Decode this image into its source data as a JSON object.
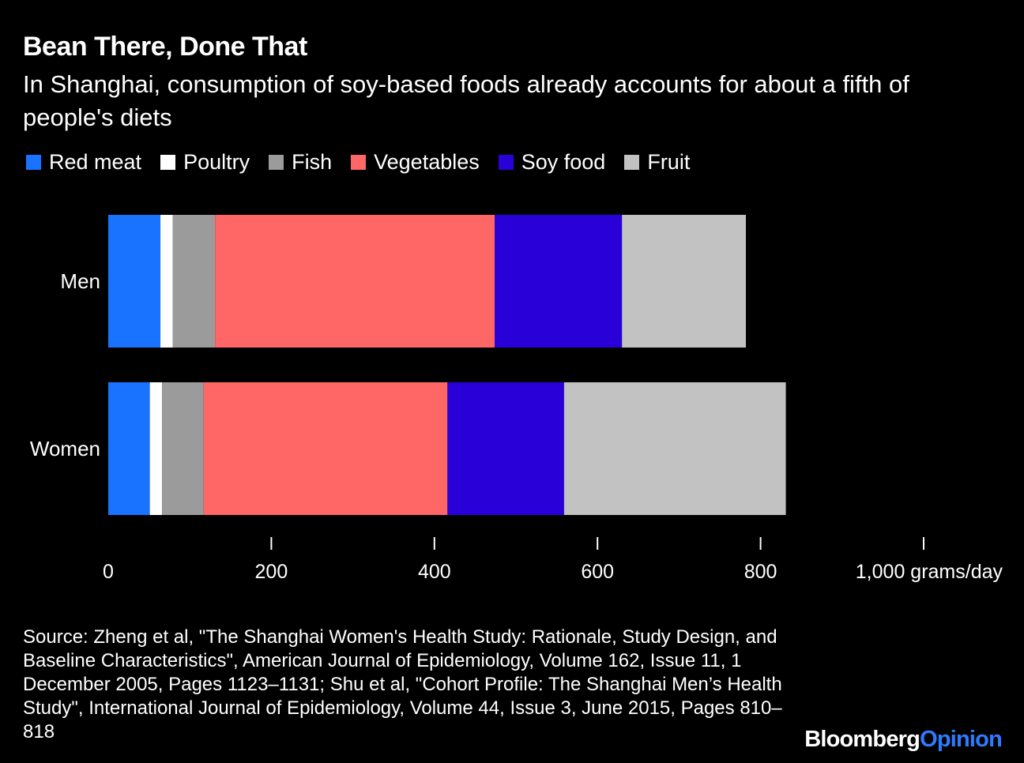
{
  "title": "Bean There, Done That",
  "subtitle": "In Shanghai, consumption of soy-based foods already accounts for about a fifth of people's diets",
  "source": "Source: Zheng et al, \"The Shanghai Women's Health Study: Rationale, Study Design, and Baseline Characteristics\", American Journal of Epidemiology, Volume 162, Issue 11, 1 December 2005, Pages 1123–1131; Shu et al, \"Cohort Profile: The Shanghai Men’s Health Study\", International Journal of Epidemiology, Volume 44, Issue 3, June 2015, Pages 810–818",
  "brand": {
    "part1": "Bloomberg",
    "part2": "Opinion"
  },
  "chart_data": {
    "type": "bar",
    "orientation": "horizontal",
    "stacked": true,
    "categories": [
      "Men",
      "Women"
    ],
    "series": [
      {
        "name": "Red meat",
        "color": "#1a73ff",
        "values": [
          64,
          51
        ]
      },
      {
        "name": "Poultry",
        "color": "#ffffff",
        "values": [
          15,
          15
        ]
      },
      {
        "name": "Fish",
        "color": "#9b9b9b",
        "values": [
          52,
          51
        ]
      },
      {
        "name": "Vegetables",
        "color": "#ff6666",
        "values": [
          343,
          299
        ]
      },
      {
        "name": "Soy food",
        "color": "#2a00d8",
        "values": [
          156,
          143
        ]
      },
      {
        "name": "Fruit",
        "color": "#c2c2c2",
        "values": [
          152,
          272
        ]
      }
    ],
    "xlim": [
      0,
      1000
    ],
    "xticks": [
      0,
      200,
      400,
      600,
      800,
      1000
    ],
    "xtick_labels": [
      "0",
      "200",
      "400",
      "600",
      "800",
      "1,000 grams/day"
    ],
    "legend_position": "top-left",
    "grid": false
  }
}
